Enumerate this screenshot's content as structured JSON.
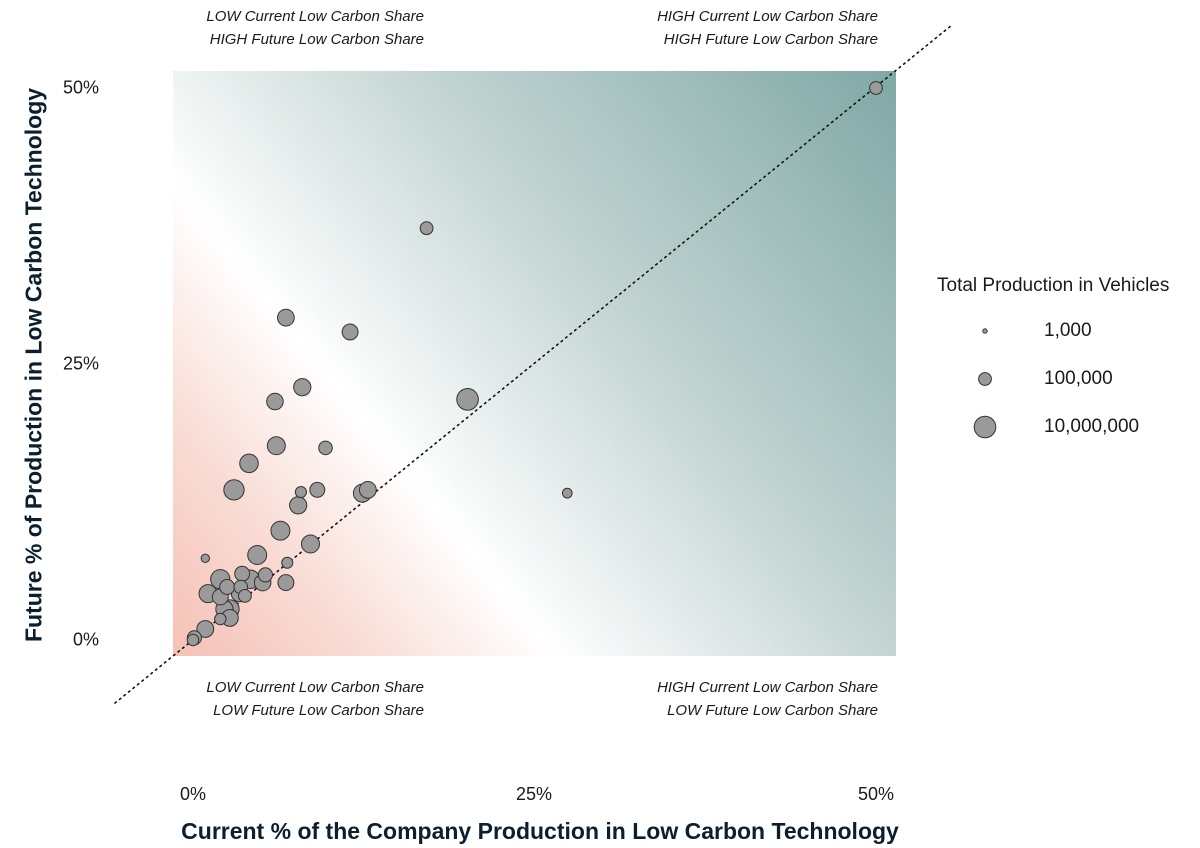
{
  "chart_data": {
    "type": "scatter",
    "xlabel": "Current % of the Company Production in Low Carbon Technology",
    "ylabel": "Future % of Production in Low Carbon Technology",
    "xlim": [
      -0.015,
      0.515
    ],
    "ylim": [
      -0.015,
      0.515
    ],
    "x_ticks": [
      "0%",
      "25%",
      "50%"
    ],
    "x_tick_values": [
      0,
      0.25,
      0.5
    ],
    "y_ticks": [
      "0%",
      "25%",
      "50%"
    ],
    "y_tick_values": [
      0,
      0.25,
      0.5
    ],
    "reference_line": "y = x (dotted)",
    "background": "diagonal gradient: red (low/low) to white to teal (high/high)",
    "colors": {
      "red": "#f5c1b6",
      "teal": "#7fa8a5",
      "point_fill": "#9a9a9a",
      "point_stroke": "#333333"
    },
    "quadrant_labels": {
      "top_left": [
        "LOW Current Low Carbon Share",
        "HIGH Future Low Carbon Share"
      ],
      "top_right": [
        "HIGH Current Low Carbon Share",
        "HIGH Future Low Carbon Share"
      ],
      "bottom_left": [
        "LOW Current Low Carbon Share",
        "LOW Future Low Carbon Share"
      ],
      "bottom_right": [
        "HIGH Current Low Carbon Share",
        "LOW Future Low Carbon Share"
      ]
    },
    "size_legend": {
      "title": "Total Production in Vehicles",
      "entries": [
        {
          "label": "1,000",
          "value": 1000
        },
        {
          "label": "100,000",
          "value": 100000
        },
        {
          "label": "10,000,000",
          "value": 10000000
        }
      ]
    },
    "points": [
      {
        "x": 0.5,
        "y": 0.5,
        "size": 100000
      },
      {
        "x": 0.171,
        "y": 0.373,
        "size": 100000
      },
      {
        "x": 0.068,
        "y": 0.292,
        "size": 800000
      },
      {
        "x": 0.115,
        "y": 0.279,
        "size": 500000
      },
      {
        "x": 0.08,
        "y": 0.229,
        "size": 1000000
      },
      {
        "x": 0.201,
        "y": 0.218,
        "size": 10000000
      },
      {
        "x": 0.06,
        "y": 0.216,
        "size": 700000
      },
      {
        "x": 0.061,
        "y": 0.176,
        "size": 1500000
      },
      {
        "x": 0.097,
        "y": 0.174,
        "size": 150000
      },
      {
        "x": 0.041,
        "y": 0.16,
        "size": 2000000
      },
      {
        "x": 0.03,
        "y": 0.136,
        "size": 5000000
      },
      {
        "x": 0.079,
        "y": 0.134,
        "size": 40000
      },
      {
        "x": 0.091,
        "y": 0.136,
        "size": 300000
      },
      {
        "x": 0.124,
        "y": 0.133,
        "size": 1500000
      },
      {
        "x": 0.128,
        "y": 0.136,
        "size": 800000
      },
      {
        "x": 0.274,
        "y": 0.133,
        "size": 20000
      },
      {
        "x": 0.077,
        "y": 0.122,
        "size": 1000000
      },
      {
        "x": 0.064,
        "y": 0.099,
        "size": 2500000
      },
      {
        "x": 0.086,
        "y": 0.087,
        "size": 1500000
      },
      {
        "x": 0.047,
        "y": 0.077,
        "size": 2500000
      },
      {
        "x": 0.009,
        "y": 0.074,
        "size": 10000
      },
      {
        "x": 0.069,
        "y": 0.07,
        "size": 40000
      },
      {
        "x": 0.036,
        "y": 0.06,
        "size": 300000
      },
      {
        "x": 0.02,
        "y": 0.055,
        "size": 3000000
      },
      {
        "x": 0.042,
        "y": 0.055,
        "size": 2000000
      },
      {
        "x": 0.051,
        "y": 0.052,
        "size": 700000
      },
      {
        "x": 0.053,
        "y": 0.059,
        "size": 200000
      },
      {
        "x": 0.068,
        "y": 0.052,
        "size": 500000
      },
      {
        "x": 0.035,
        "y": 0.048,
        "size": 150000
      },
      {
        "x": 0.011,
        "y": 0.042,
        "size": 1500000
      },
      {
        "x": 0.025,
        "y": 0.048,
        "size": 300000
      },
      {
        "x": 0.034,
        "y": 0.042,
        "size": 600000
      },
      {
        "x": 0.02,
        "y": 0.039,
        "size": 500000
      },
      {
        "x": 0.038,
        "y": 0.04,
        "size": 100000
      },
      {
        "x": 0.023,
        "y": 0.028,
        "size": 1000000
      },
      {
        "x": 0.027,
        "y": 0.028,
        "size": 2000000
      },
      {
        "x": 0.027,
        "y": 0.02,
        "size": 800000
      },
      {
        "x": 0.02,
        "y": 0.019,
        "size": 50000
      },
      {
        "x": 0.009,
        "y": 0.01,
        "size": 800000
      },
      {
        "x": 0.001,
        "y": 0.002,
        "size": 200000
      },
      {
        "x": 0.0,
        "y": 0.0,
        "size": 50000
      }
    ]
  }
}
